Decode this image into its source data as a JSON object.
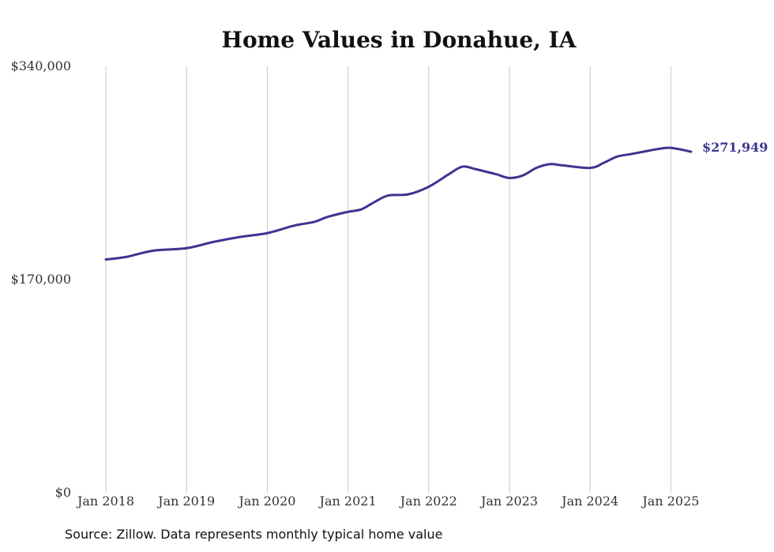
{
  "chart_data": {
    "type": "line",
    "title": "Home Values in Donahue, IA",
    "xlabel": "",
    "ylabel": "",
    "ylim": [
      0,
      340000
    ],
    "y_ticks": [
      0,
      170000,
      340000
    ],
    "y_tick_labels": [
      "$0",
      "$170,000",
      "$340,000"
    ],
    "x_ticks": [
      "2018-01",
      "2019-01",
      "2020-01",
      "2021-01",
      "2022-01",
      "2023-01",
      "2024-01",
      "2025-01"
    ],
    "x_tick_labels": [
      "Jan 2018",
      "Jan 2019",
      "Jan 2020",
      "Jan 2021",
      "Jan 2022",
      "Jan 2023",
      "Jan 2024",
      "Jan 2025"
    ],
    "grid": "vertical",
    "series": [
      {
        "color": "#3d3590",
        "end_label": "$271,949",
        "points": [
          {
            "x": "2018-01",
            "y": 186000
          },
          {
            "x": "2018-04",
            "y": 188000
          },
          {
            "x": "2018-08",
            "y": 193000
          },
          {
            "x": "2019-01",
            "y": 195000
          },
          {
            "x": "2019-05",
            "y": 200000
          },
          {
            "x": "2019-09",
            "y": 204000
          },
          {
            "x": "2020-01",
            "y": 207000
          },
          {
            "x": "2020-05",
            "y": 213000
          },
          {
            "x": "2020-08",
            "y": 216000
          },
          {
            "x": "2020-10",
            "y": 220000
          },
          {
            "x": "2021-01",
            "y": 224000
          },
          {
            "x": "2021-03",
            "y": 226000
          },
          {
            "x": "2021-05",
            "y": 232000
          },
          {
            "x": "2021-07",
            "y": 237000
          },
          {
            "x": "2021-10",
            "y": 238000
          },
          {
            "x": "2022-01",
            "y": 244000
          },
          {
            "x": "2022-04",
            "y": 254000
          },
          {
            "x": "2022-06",
            "y": 260000
          },
          {
            "x": "2022-08",
            "y": 258000
          },
          {
            "x": "2022-11",
            "y": 254000
          },
          {
            "x": "2023-01",
            "y": 251000
          },
          {
            "x": "2023-03",
            "y": 253000
          },
          {
            "x": "2023-05",
            "y": 259000
          },
          {
            "x": "2023-07",
            "y": 262000
          },
          {
            "x": "2023-09",
            "y": 261000
          },
          {
            "x": "2024-01",
            "y": 259000
          },
          {
            "x": "2024-03",
            "y": 263000
          },
          {
            "x": "2024-05",
            "y": 268000
          },
          {
            "x": "2024-07",
            "y": 270000
          },
          {
            "x": "2024-09",
            "y": 272000
          },
          {
            "x": "2024-11",
            "y": 274000
          },
          {
            "x": "2025-01",
            "y": 275000
          },
          {
            "x": "2025-04",
            "y": 271949
          }
        ]
      }
    ]
  },
  "footer": {
    "source": "Source: Zillow. Data represents monthly typical home value"
  }
}
